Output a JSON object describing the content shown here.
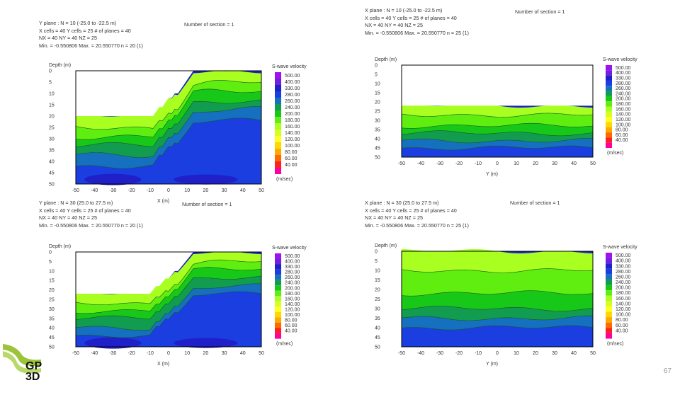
{
  "page": {
    "page_number": "67"
  },
  "logo": {
    "text_top": "GP",
    "text_bottom": "3D"
  },
  "colors": {
    "scale": [
      "#ff00a0",
      "#ff2020",
      "#ff6a00",
      "#ffaa00",
      "#ffd800",
      "#ffff20",
      "#d8ff20",
      "#a8ff20",
      "#60ee10",
      "#18c818",
      "#119c50",
      "#1670c0",
      "#1a3ee0",
      "#2020c8",
      "#7020e0",
      "#a010f0"
    ],
    "plot_border": "#000000",
    "contour": "#1a5a1a"
  },
  "chart_data": [
    {
      "id": "top-left",
      "type": "contour",
      "header": [
        "Y plane : N = 10 (-25.0 to -22.5 m)",
        "X cells = 40 Y cells = 25 # of planes = 40",
        "NX = 40 NY = 40 NZ = 25",
        "Min. = -0.550806 Max. = 20.550770 n = 20 (1)"
      ],
      "section": "Number of section = 1",
      "xlabel": "X (m)",
      "ylabel": "Depth (m)",
      "xticks": [
        "-50",
        "-40",
        "-30",
        "-20",
        "-10",
        "0",
        "10",
        "20",
        "30",
        "40",
        "50"
      ],
      "yticks": [
        "0",
        "5",
        "10",
        "15",
        "20",
        "25",
        "30",
        "35",
        "40",
        "45",
        "50"
      ],
      "xlim": [
        -50,
        50
      ],
      "ylim": [
        0,
        50
      ],
      "legend_title": "S-wave velocity",
      "legend_unit": "(m/sec)",
      "legend_values": [
        "500.00",
        "400.00",
        "330.00",
        "280.00",
        "260.00",
        "240.00",
        "200.00",
        "180.00",
        "160.00",
        "140.00",
        "120.00",
        "100.00",
        "80.00",
        "60.00",
        "40.00"
      ],
      "surface": [
        [
          -50,
          20
        ],
        [
          -15,
          20
        ],
        [
          -12,
          21
        ],
        [
          -8,
          19
        ],
        [
          -3,
          15
        ],
        [
          2,
          11
        ],
        [
          7,
          8
        ],
        [
          10,
          4
        ],
        [
          13,
          0
        ],
        [
          50,
          0
        ]
      ],
      "stepped_surface": true,
      "bands": [
        {
          "offset": 0,
          "color": "#a8ff20"
        },
        {
          "offset": 5,
          "color": "#60ee10"
        },
        {
          "offset": 9,
          "color": "#18c818"
        },
        {
          "offset": 13,
          "color": "#119c50"
        },
        {
          "offset": 17,
          "color": "#1670c0"
        },
        {
          "offset": 22,
          "color": "#1a3ee0"
        }
      ],
      "bottom_color": "#2020c8"
    },
    {
      "id": "top-right",
      "type": "contour",
      "header": [
        "X plane : N = 10 (-25.0 to -22.5 m)",
        "X cells = 40 Y cells = 25 # of planes = 40",
        "NX = 40 NY = 40 NZ = 25",
        "Min. = -0.550806 Max. = 20.550770 n = 25 (1)"
      ],
      "section": "Number of section = 1",
      "xlabel": "Y (m)",
      "ylabel": "Depth (m)",
      "xticks": [
        "-50",
        "-40",
        "-30",
        "-20",
        "-10",
        "0",
        "10",
        "20",
        "30",
        "40",
        "50"
      ],
      "yticks": [
        "0",
        "5",
        "10",
        "15",
        "20",
        "25",
        "30",
        "35",
        "40",
        "45",
        "50"
      ],
      "xlim": [
        -50,
        50
      ],
      "ylim": [
        0,
        50
      ],
      "legend_title": "S-wave velocity",
      "legend_unit": "(m/sec)",
      "legend_values": [
        "500.00",
        "400.00",
        "330.00",
        "280.00",
        "260.00",
        "240.00",
        "200.00",
        "180.00",
        "160.00",
        "140.00",
        "120.00",
        "100.00",
        "80.00",
        "60.00",
        "40.00"
      ],
      "surface": [
        [
          -50,
          22
        ],
        [
          50,
          22
        ]
      ],
      "stepped_surface": false,
      "bands": [
        {
          "offset": 0,
          "color": "#a8ff20"
        },
        {
          "offset": 5,
          "color": "#60ee10"
        },
        {
          "offset": 11,
          "color": "#18c818"
        },
        {
          "offset": 15,
          "color": "#119c50"
        },
        {
          "offset": 19,
          "color": "#1670c0"
        },
        {
          "offset": 23,
          "color": "#1a3ee0"
        }
      ],
      "bottom_color": "#2020c8"
    },
    {
      "id": "bottom-left",
      "type": "contour",
      "header": [
        "Y plane : N = 30 (25.0 to 27.5 m)",
        "X cells = 40 Y cells = 25 # of planes = 40",
        "NX = 40 NY = 40 NZ = 25",
        "Min. = -0.550806 Max. = 20.550770 n = 20 (1)"
      ],
      "section": "Number of section = 1",
      "xlabel": "X (m)",
      "ylabel": "Depth (m)",
      "xticks": [
        "-50",
        "-40",
        "-30",
        "-20",
        "-10",
        "0",
        "10",
        "20",
        "30",
        "40",
        "50"
      ],
      "yticks": [
        "0",
        "5",
        "10",
        "15",
        "20",
        "25",
        "30",
        "35",
        "40",
        "45",
        "50"
      ],
      "xlim": [
        -50,
        50
      ],
      "ylim": [
        0,
        50
      ],
      "legend_title": "S-wave velocity",
      "legend_unit": "(m/sec)",
      "legend_values": [
        "500.00",
        "400.00",
        "330.00",
        "280.00",
        "260.00",
        "240.00",
        "200.00",
        "180.00",
        "160.00",
        "140.00",
        "120.00",
        "100.00",
        "80.00",
        "60.00",
        "40.00"
      ],
      "surface": [
        [
          -50,
          21
        ],
        [
          -15,
          21
        ],
        [
          -11,
          22
        ],
        [
          -7,
          19
        ],
        [
          -2,
          15
        ],
        [
          3,
          11
        ],
        [
          8,
          6
        ],
        [
          11,
          2
        ],
        [
          14,
          0
        ],
        [
          50,
          0
        ]
      ],
      "stepped_surface": true,
      "bands": [
        {
          "offset": 0,
          "color": "#a8ff20"
        },
        {
          "offset": 5,
          "color": "#60ee10"
        },
        {
          "offset": 9,
          "color": "#18c818"
        },
        {
          "offset": 13,
          "color": "#119c50"
        },
        {
          "offset": 18,
          "color": "#1670c0"
        },
        {
          "offset": 22,
          "color": "#1a3ee0"
        }
      ],
      "bottom_color": "#2020c8"
    },
    {
      "id": "bottom-right",
      "type": "contour",
      "header": [
        "X plane : N = 30 (25.0 to 27.5 m)",
        "X cells = 40 Y cells = 25 # of planes = 40",
        "NX = 40 NY = 40 NZ = 25",
        "Min. = -0.550806 Max. = 20.550770 n = 25 (1)"
      ],
      "section": "Number of section = 1",
      "xlabel": "Y (m)",
      "ylabel": "Depth (m)",
      "xticks": [
        "-50",
        "-40",
        "-30",
        "-20",
        "-10",
        "0",
        "10",
        "20",
        "30",
        "40",
        "50"
      ],
      "yticks": [
        "0",
        "5",
        "10",
        "15",
        "20",
        "25",
        "30",
        "35",
        "40",
        "45",
        "50"
      ],
      "xlim": [
        -50,
        50
      ],
      "ylim": [
        0,
        50
      ],
      "legend_title": "S-wave velocity",
      "legend_unit": "(m/sec)",
      "legend_values": [
        "500.00",
        "400.00",
        "330.00",
        "280.00",
        "260.00",
        "240.00",
        "200.00",
        "180.00",
        "160.00",
        "140.00",
        "120.00",
        "100.00",
        "80.00",
        "60.00",
        "40.00"
      ],
      "surface": [
        [
          -50,
          0
        ],
        [
          50,
          0
        ]
      ],
      "stepped_surface": false,
      "bands": [
        {
          "offset": 0,
          "color": "#a8ff20"
        },
        {
          "offset": 10,
          "color": "#60ee10"
        },
        {
          "offset": 22,
          "color": "#18c818"
        },
        {
          "offset": 30,
          "color": "#119c50"
        },
        {
          "offset": 35,
          "color": "#1670c0"
        },
        {
          "offset": 40,
          "color": "#1a3ee0"
        }
      ],
      "bottom_color": "#2020c8"
    }
  ]
}
